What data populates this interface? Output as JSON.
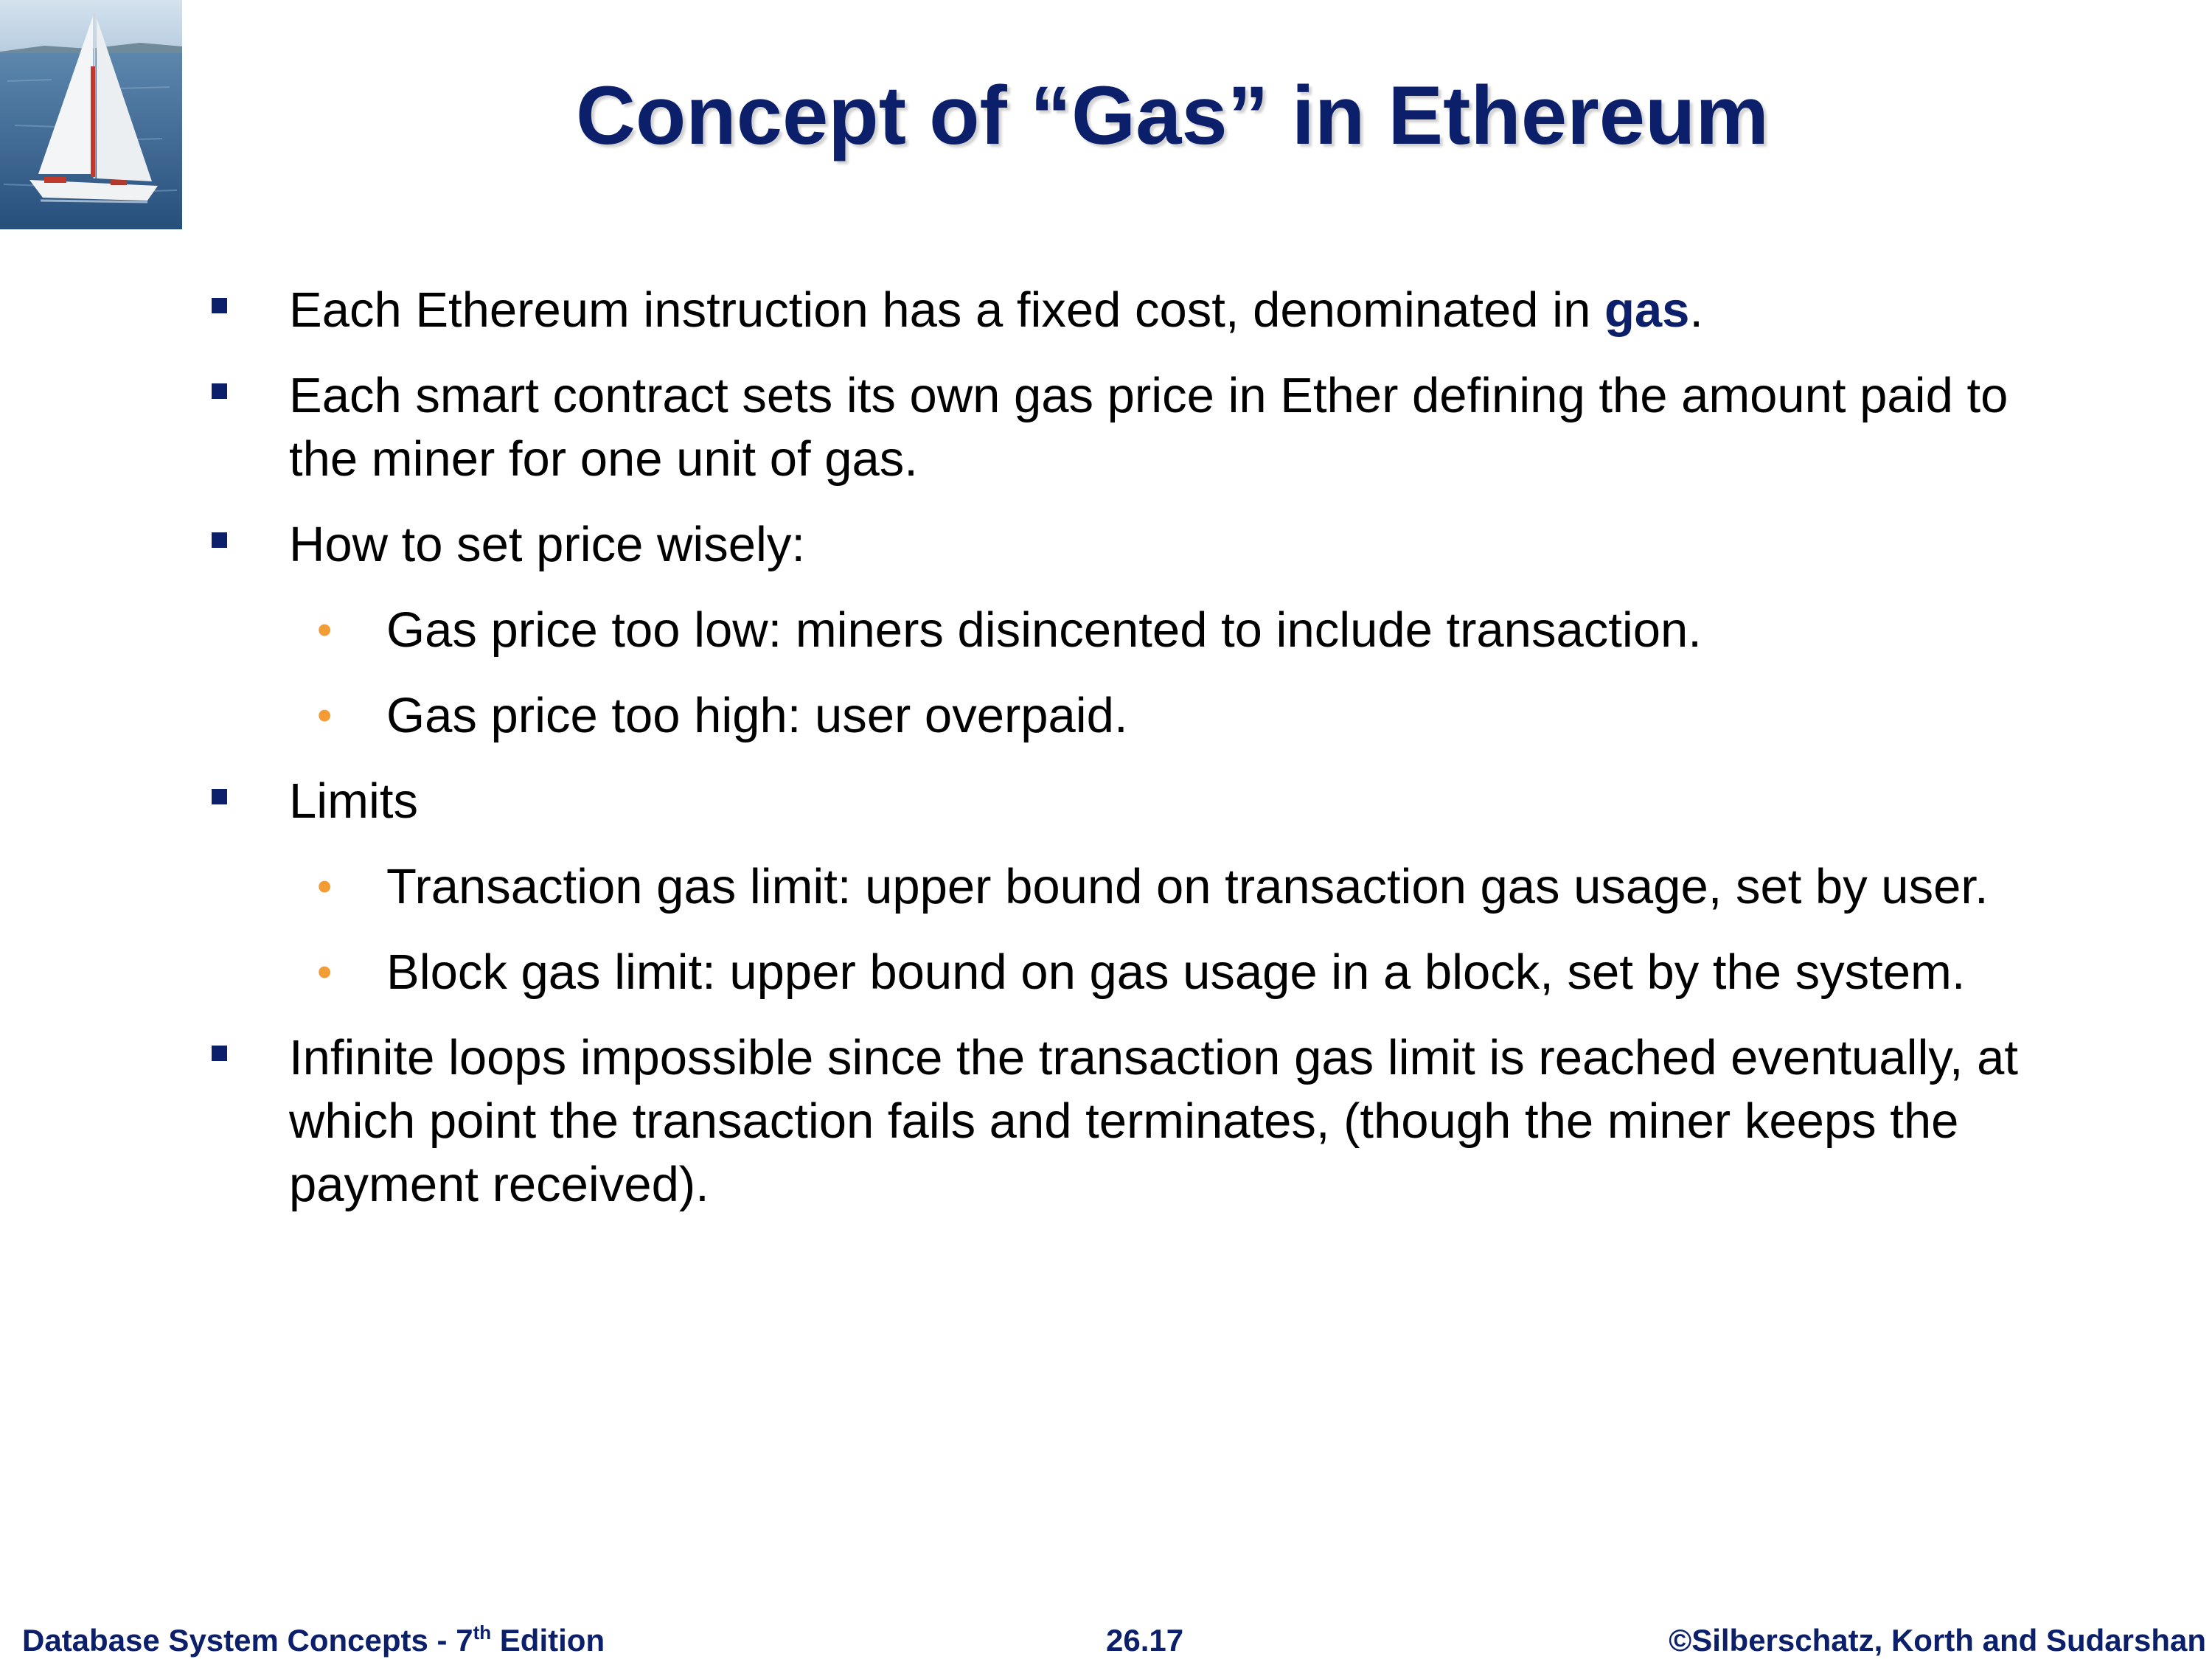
{
  "title": "Concept of “Gas” in Ethereum",
  "bullets": [
    {
      "pre": "Each Ethereum instruction has a fixed cost, denominated in ",
      "highlight": "gas",
      "post": "."
    },
    {
      "text": "Each smart contract sets its own gas price in Ether defining the amount paid to the miner for one unit of gas."
    },
    {
      "text": "How to set price wisely:"
    },
    {
      "text": "Gas price too low: miners disincented to include transaction."
    },
    {
      "text": "Gas price too high: user overpaid."
    },
    {
      "text": "Limits"
    },
    {
      "text": "Transaction gas limit: upper bound on transaction gas usage, set by user."
    },
    {
      "text": "Block gas limit: upper bound on gas usage in a block, set by the system."
    },
    {
      "text": "Infinite loops impossible since the transaction gas limit is reached eventually, at which point the transaction fails and terminates, (though the miner keeps the payment received)."
    }
  ],
  "footer": {
    "left_pre": "Database System Concepts - 7",
    "left_sup": "th",
    "left_post": " Edition",
    "center": "26.17",
    "right": "©Silberschatz, Korth and Sudarshan"
  },
  "colors": {
    "title": "#0b1f6b",
    "level1_bullet": "#0b1f6b",
    "level2_bullet": "#f39c34",
    "footer": "#0b1f6b"
  },
  "icons": {
    "logo": "sailboat-image",
    "level1": "square-bullet-icon",
    "level2": "dot-bullet-icon"
  }
}
